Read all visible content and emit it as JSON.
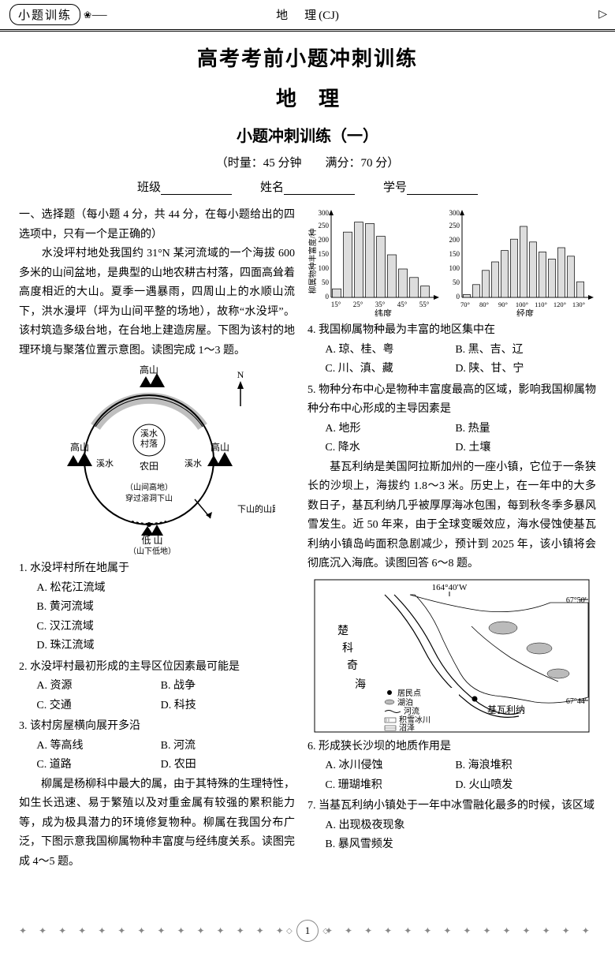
{
  "header": {
    "badge": "小题训练",
    "subject": "地　理",
    "code": "(CJ)"
  },
  "titles": {
    "main": "高考考前小题冲刺训练",
    "sub": "地理",
    "set": "小题冲刺训练（一）",
    "timing": "（时量：45 分钟　　满分：70 分）"
  },
  "blanks": {
    "class": "班级",
    "name": "姓名",
    "id": "学号"
  },
  "section1_head": "一、选择题（每小题 4 分，共 44 分，在每小题给出的四选项中，只有一个是正确的）",
  "passage1": "　　水没坪村地处我国约 31°N 某河流域的一个海拔 600 多米的山间盆地，是典型的山地农耕古村落，四面高耸着高度相近的大山。夏季一遇暴雨，四周山上的水顺山流下，洪水漫坪（坪为山间平整的场地），故称“水没坪”。该村筑造多级台地，在台地上建造房屋。下图为该村的地理环境与聚落位置示意图。读图完成 1～3 题。",
  "diagram1": {
    "labels": {
      "top": "高山",
      "left": "高山",
      "right": "高山",
      "n": "N",
      "streams": "溪水",
      "village": "村落",
      "farmland": "农田",
      "inner": "（山间高地）",
      "cave": "穿过溶洞下山",
      "road": "下山的山路",
      "low": "低   山",
      "lowlabel": "（山下低地）"
    }
  },
  "q1": {
    "stem": "1. 水没坪村所在地属于",
    "a": "A. 松花江流域",
    "b": "B. 黄河流域",
    "c": "C. 汉江流域",
    "d": "D. 珠江流域"
  },
  "q2": {
    "stem": "2. 水没坪村最初形成的主导区位因素最可能是",
    "a": "A. 资源",
    "b": "B. 战争",
    "c": "C. 交通",
    "d": "D. 科技"
  },
  "q3": {
    "stem": "3. 该村房屋横向展开多沿",
    "a": "A. 等高线",
    "b": "B. 河流",
    "c": "C. 道路",
    "d": "D. 农田"
  },
  "passage2": "　　柳属是杨柳科中最大的属，由于其特殊的生理特性，如生长迅速、易于繁殖以及对重金属有较强的累积能力等，成为极具潜力的环境修复物种。柳属在我国分布广泛，下图示意我国柳属物种丰富度与经纬度关系。读图完成 4～5 题。",
  "charts": {
    "ylabel": "柳属物种丰富度/种",
    "left": {
      "xlabel": "纬度",
      "xticks": [
        "15°",
        "25°",
        "35°",
        "45°",
        "55°"
      ],
      "ylim": [
        0,
        300
      ],
      "ytick_step": 50,
      "bars": [
        30,
        230,
        265,
        260,
        215,
        150,
        100,
        70,
        40
      ],
      "bar_color": "#dddddd",
      "border_color": "#000000",
      "background": "#ffffff",
      "grid": false
    },
    "right": {
      "xlabel": "经度",
      "xticks": [
        "70°",
        "80°",
        "90°",
        "100°",
        "110°",
        "120°",
        "130°"
      ],
      "ylim": [
        0,
        300
      ],
      "ytick_step": 50,
      "bars": [
        10,
        45,
        95,
        125,
        165,
        205,
        250,
        195,
        160,
        135,
        175,
        145,
        55
      ],
      "bar_color": "#dddddd",
      "border_color": "#000000",
      "background": "#ffffff",
      "grid": false
    }
  },
  "q4": {
    "stem": "4. 我国柳属物种最为丰富的地区集中在",
    "a": "A. 琼、桂、粤",
    "b": "B. 黑、吉、辽",
    "c": "C. 川、滇、藏",
    "d": "D. 陕、甘、宁"
  },
  "q5": {
    "stem": "5. 物种分布中心是物种丰富度最高的区域，影响我国柳属物种分布中心形成的主导因素是",
    "a": "A. 地形",
    "b": "B. 热量",
    "c": "C. 降水",
    "d": "D. 土壤"
  },
  "passage3": "　　基瓦利纳是美国阿拉斯加州的一座小镇，它位于一条狭长的沙坝上，海拔约 1.8～3 米。历史上，在一年中的大多数日子，基瓦利纳几乎被厚厚海冰包围，每到秋冬季多暴风雪发生。近 50 年来，由于全球变暖效应，海水侵蚀使基瓦利纳小镇岛屿面积急剧减少，预计到 2025 年，该小镇将会彻底沉入海底。读图回答 6～8 题。",
  "map": {
    "lon_label": "164°40′W",
    "lat_top": "67°50′",
    "lat_bot": "67°44′",
    "sea": "楚科奇海",
    "town": "基瓦利纳",
    "legend": {
      "settlement": "居民点",
      "lake": "湖泊",
      "river": "河流",
      "ice": "积雪冰川",
      "swamp": "沼泽"
    }
  },
  "q6": {
    "stem": "6. 形成狭长沙坝的地质作用是",
    "a": "A. 冰川侵蚀",
    "b": "B. 海浪堆积",
    "c": "C. 珊瑚堆积",
    "d": "D. 火山喷发"
  },
  "q7": {
    "stem": "7. 当基瓦利纳小镇处于一年中冰雪融化最多的时候，该区域",
    "a": "A. 出现极夜现象",
    "b": "B. 暴风雪频发"
  },
  "page_number": "1"
}
